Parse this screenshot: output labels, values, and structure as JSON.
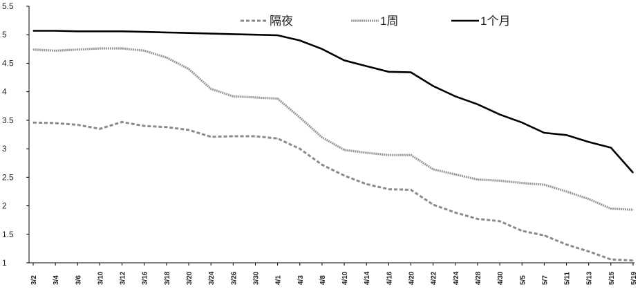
{
  "chart_data": {
    "type": "line",
    "ylim": [
      1,
      5.5
    ],
    "yticks": [
      "1",
      "1.5",
      "2",
      "2.5",
      "3",
      "3.5",
      "4",
      "4.5",
      "5",
      "5.5"
    ],
    "x": [
      "3/2",
      "3/4",
      "3/6",
      "3/10",
      "3/12",
      "3/16",
      "3/18",
      "3/20",
      "3/24",
      "3/26",
      "3/30",
      "4/1",
      "4/3",
      "4/8",
      "4/10",
      "4/14",
      "4/16",
      "4/20",
      "4/22",
      "4/24",
      "4/28",
      "4/30",
      "5/5",
      "5/7",
      "5/11",
      "5/13",
      "5/15",
      "5/19"
    ],
    "legend_position": "top",
    "grid": false,
    "series": [
      {
        "name": "隔夜",
        "style": "dashed",
        "color": "#8a8a8a",
        "values": [
          3.46,
          3.45,
          3.42,
          3.35,
          3.47,
          3.4,
          3.38,
          3.33,
          3.21,
          3.22,
          3.22,
          3.18,
          3.0,
          2.72,
          2.53,
          2.38,
          2.29,
          2.28,
          2.02,
          1.88,
          1.77,
          1.73,
          1.56,
          1.48,
          1.32,
          1.2,
          1.06,
          1.04
        ]
      },
      {
        "name": "1周",
        "style": "wavy",
        "color": "#9a9a9a",
        "values": [
          4.74,
          4.72,
          4.74,
          4.76,
          4.76,
          4.72,
          4.6,
          4.4,
          4.05,
          3.92,
          3.9,
          3.88,
          3.55,
          3.2,
          2.98,
          2.93,
          2.89,
          2.89,
          2.64,
          2.55,
          2.46,
          2.44,
          2.4,
          2.37,
          2.25,
          2.12,
          1.95,
          1.93
        ]
      },
      {
        "name": "1个月",
        "style": "solid",
        "color": "#000000",
        "values": [
          5.07,
          5.07,
          5.06,
          5.06,
          5.06,
          5.05,
          5.04,
          5.03,
          5.02,
          5.01,
          5.0,
          4.99,
          4.9,
          4.75,
          4.55,
          4.45,
          4.35,
          4.34,
          4.1,
          3.92,
          3.78,
          3.6,
          3.46,
          3.28,
          3.24,
          3.12,
          3.02,
          2.58
        ]
      }
    ]
  }
}
